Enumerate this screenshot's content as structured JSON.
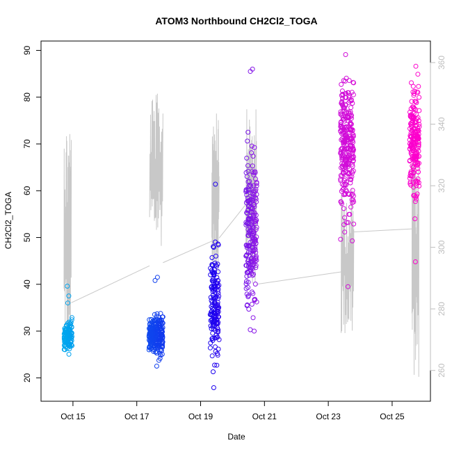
{
  "chart_data": {
    "type": "scatter",
    "title": "ATOM3 Northbound CH2Cl2_TOGA",
    "xlabel": "Date",
    "ylabel": "CH2Cl2_TOGA",
    "x_ticks": [
      "Oct 15",
      "Oct 17",
      "Oct 19",
      "Oct 21",
      "Oct 23",
      "Oct 25"
    ],
    "x_tick_days": [
      15,
      17,
      19,
      21,
      23,
      25
    ],
    "xlim": [
      14.0,
      26.2
    ],
    "ylim": [
      15,
      92
    ],
    "y_ticks": [
      20,
      30,
      40,
      50,
      60,
      70,
      80,
      90
    ],
    "y2_ticks": [
      260,
      280,
      300,
      320,
      340,
      360
    ],
    "y2lim": [
      250,
      367
    ],
    "grid": false,
    "scatter_colors": {
      "start": "#00a8ee",
      "mid": "#1a00ee",
      "mid2": "#9a1ae6",
      "end": "#ff00cc"
    },
    "line_color": "#c8c8c8",
    "clusters": [
      {
        "day_start": 14.72,
        "day_end": 14.97,
        "y_min": 25,
        "y_max": 35,
        "y_center": 29,
        "outliers": [
          39.6,
          37.5,
          36.0
        ],
        "n": 120
      },
      {
        "day_start": 17.38,
        "day_end": 17.82,
        "y_min": 23,
        "y_max": 37,
        "y_center": 29,
        "outliers": [
          41.5,
          40.8,
          22.5
        ],
        "n": 240
      },
      {
        "day_start": 19.3,
        "day_end": 19.58,
        "y_min": 18,
        "y_max": 61,
        "y_center": 36,
        "outliers": [
          61.4,
          17.9
        ],
        "n": 150
      },
      {
        "day_start": 20.42,
        "day_end": 20.76,
        "y_min": 30,
        "y_max": 86,
        "y_center": 52,
        "outliers": [
          86.0,
          85.5,
          30.3
        ],
        "n": 220
      },
      {
        "day_start": 23.38,
        "day_end": 23.8,
        "y_min": 39,
        "y_max": 89,
        "y_center": 70,
        "outliers": [
          89.1,
          39.5
        ],
        "n": 280
      },
      {
        "day_start": 25.55,
        "day_end": 25.85,
        "y_min": 45,
        "y_max": 87,
        "y_center": 70,
        "outliers": [
          86.6,
          44.8
        ],
        "n": 200
      }
    ],
    "line_segments": [
      {
        "day_start": 14.72,
        "day_end": 14.95,
        "y2_min": 263,
        "y2_max": 343
      },
      {
        "day_start": 17.4,
        "day_end": 17.82,
        "y2_min": 300,
        "y2_max": 350
      },
      {
        "day_start": 19.35,
        "day_end": 19.58,
        "y2_min": 290,
        "y2_max": 350
      },
      {
        "day_start": 20.42,
        "day_end": 20.75,
        "y2_min": 285,
        "y2_max": 345
      },
      {
        "day_start": 23.4,
        "day_end": 23.8,
        "y2_min": 270,
        "y2_max": 320
      },
      {
        "day_start": 25.62,
        "day_end": 25.84,
        "y2_min": 257,
        "y2_max": 340
      }
    ],
    "line_connectors": [
      {
        "from": [
          14.95,
          282
        ],
        "to": [
          17.4,
          294
        ]
      },
      {
        "from": [
          17.82,
          295
        ],
        "to": [
          19.35,
          302
        ]
      },
      {
        "from": [
          19.58,
          303
        ],
        "to": [
          20.42,
          314
        ]
      },
      {
        "from": [
          20.75,
          288
        ],
        "to": [
          23.4,
          292
        ]
      },
      {
        "from": [
          23.8,
          305
        ],
        "to": [
          25.62,
          306
        ]
      }
    ]
  }
}
